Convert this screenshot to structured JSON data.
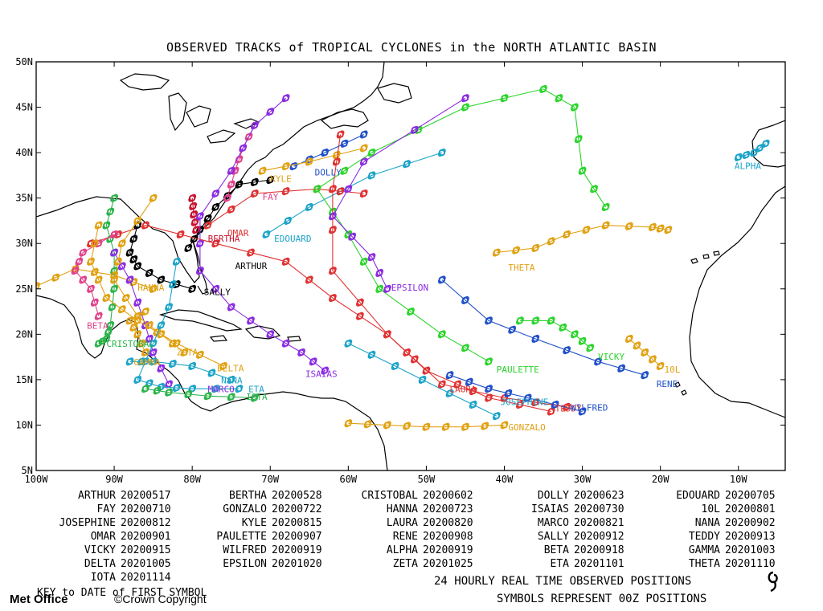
{
  "title": "OBSERVED TRACKS of TROPICAL CYCLONES in the NORTH ATLANTIC BASIN",
  "axes": {
    "lat_labels": [
      "50N",
      "45N",
      "40N",
      "35N",
      "30N",
      "25N",
      "20N",
      "15N",
      "10N",
      "5N"
    ],
    "lon_labels": [
      "100W",
      "90W",
      "80W",
      "70W",
      "60W",
      "50W",
      "40W",
      "30W",
      "20W",
      "10W"
    ],
    "lon_range": [
      -100,
      -4
    ],
    "lat_range": [
      5,
      50
    ]
  },
  "storms": [
    {
      "name": "ARTHUR",
      "date": "20200517",
      "color": "#000000",
      "label_at": [
        -74.5,
        27.2
      ],
      "track": [
        [
          -80.5,
          29.5
        ],
        [
          -79,
          31.5
        ],
        [
          -77,
          34
        ],
        [
          -74,
          36.5
        ],
        [
          -70,
          37
        ]
      ]
    },
    {
      "name": "BERTHA",
      "date": "20200528",
      "color": "#c8102e",
      "label_at": [
        -78,
        30.2
      ],
      "track": [
        [
          -79.5,
          31.5
        ],
        [
          -79.8,
          33.2
        ],
        [
          -80,
          35
        ]
      ]
    },
    {
      "name": "CRISTOBAL",
      "date": "20200602",
      "color": "#2ab34a",
      "label_at": [
        -91,
        18.6
      ],
      "track": [
        [
          -92,
          19
        ],
        [
          -91,
          19.5
        ],
        [
          -90.5,
          21
        ],
        [
          -90,
          25
        ],
        [
          -90,
          29
        ],
        [
          -91,
          32
        ],
        [
          -90,
          35
        ]
      ]
    },
    {
      "name": "DOLLY",
      "date": "20200623",
      "color": "#1f4fc8",
      "label_at": [
        -64.3,
        37.5
      ],
      "track": [
        [
          -67,
          38.5
        ],
        [
          -63,
          40
        ],
        [
          -58,
          42
        ]
      ]
    },
    {
      "name": "EDOUARD",
      "date": "20200705",
      "color": "#1aa3c8",
      "label_at": [
        -69.5,
        30.2
      ],
      "track": [
        [
          -70.5,
          31
        ],
        [
          -65,
          34
        ],
        [
          -57,
          37.5
        ],
        [
          -48,
          40
        ]
      ]
    },
    {
      "name": "FAY",
      "date": "20200710",
      "color": "#e0408a",
      "label_at": [
        -71,
        34.8
      ],
      "track": [
        [
          -75.5,
          35
        ],
        [
          -74.5,
          38
        ],
        [
          -73.5,
          40.5
        ],
        [
          -72,
          43
        ]
      ]
    },
    {
      "name": "GONZALO",
      "date": "20200722",
      "color": "#e0a010",
      "label_at": [
        -39.5,
        9.4
      ],
      "track": [
        [
          -60,
          10.2
        ],
        [
          -55,
          10
        ],
        [
          -50,
          9.8
        ],
        [
          -45,
          9.8
        ],
        [
          -40,
          10
        ]
      ]
    },
    {
      "name": "HANNA",
      "date": "20200723",
      "color": "#e0a010",
      "label_at": [
        -87,
        24.8
      ],
      "track": [
        [
          -85,
          25
        ],
        [
          -90,
          26.5
        ],
        [
          -95,
          27.2
        ],
        [
          -100,
          25.3
        ]
      ]
    },
    {
      "name": "ISAIAS",
      "date": "20200730",
      "color": "#8a2be2",
      "label_at": [
        -65.5,
        15.3
      ],
      "track": [
        [
          -63,
          16
        ],
        [
          -66,
          18
        ],
        [
          -70,
          20
        ],
        [
          -75,
          23
        ],
        [
          -79,
          27
        ],
        [
          -79,
          33
        ],
        [
          -75,
          38
        ],
        [
          -72,
          43
        ],
        [
          -68,
          46
        ]
      ]
    },
    {
      "name": "10L",
      "date": "20200801",
      "color": "#e0a010",
      "label_at": [
        -19.5,
        15.8
      ],
      "track": [
        [
          -24,
          19.5
        ],
        [
          -22,
          18
        ],
        [
          -20,
          16.5
        ]
      ]
    },
    {
      "name": "JOSEPHINE",
      "date": "20200812",
      "color": "#1aa3c8",
      "label_at": [
        -40.5,
        12.2
      ],
      "track": [
        [
          -41,
          11
        ],
        [
          -47,
          13.5
        ],
        [
          -54,
          16.5
        ],
        [
          -60,
          19
        ]
      ]
    },
    {
      "name": "KYLE",
      "date": "20200815",
      "color": "#e0a010",
      "label_at": [
        -70,
        36.8
      ],
      "track": [
        [
          -71,
          38
        ],
        [
          -65,
          39
        ],
        [
          -58,
          40.5
        ]
      ]
    },
    {
      "name": "LAURA",
      "date": "20200820",
      "color": "#e03030",
      "label_at": [
        -47,
        13.6
      ],
      "track": [
        [
          -34,
          11.5
        ],
        [
          -42,
          13
        ],
        [
          -50,
          16
        ],
        [
          -55,
          20
        ],
        [
          -62,
          24
        ],
        [
          -68,
          28
        ],
        [
          -77,
          30
        ],
        [
          -86,
          32
        ],
        [
          -93,
          30
        ]
      ]
    },
    {
      "name": "MARCO",
      "date": "20200821",
      "color": "#8a2be2",
      "label_at": [
        -78,
        13.6
      ],
      "track": [
        [
          -83,
          14.5
        ],
        [
          -85,
          18
        ],
        [
          -86,
          21
        ],
        [
          -88,
          26
        ],
        [
          -90,
          29
        ]
      ]
    },
    {
      "name": "NANA",
      "date": "20200902",
      "color": "#1aa3c8",
      "label_at": [
        -76.3,
        14.6
      ],
      "track": [
        [
          -75,
          15
        ],
        [
          -80,
          16.5
        ],
        [
          -85,
          17
        ],
        [
          -88,
          17
        ]
      ]
    },
    {
      "name": "OMAR",
      "date": "20200901",
      "color": "#e03030",
      "label_at": [
        -75.5,
        30.8
      ],
      "track": [
        [
          -78,
          32
        ],
        [
          -72,
          35.5
        ],
        [
          -64,
          36
        ],
        [
          -58,
          35.5
        ]
      ]
    },
    {
      "name": "PAULETTE",
      "date": "20200907",
      "color": "#2ad42a",
      "label_at": [
        -41,
        15.8
      ],
      "track": [
        [
          -42,
          17
        ],
        [
          -48,
          20
        ],
        [
          -56,
          25
        ],
        [
          -60,
          31
        ],
        [
          -64,
          36
        ],
        [
          -57,
          40
        ],
        [
          -45,
          45
        ],
        [
          -35,
          47
        ],
        [
          -31,
          45
        ],
        [
          -30,
          38
        ],
        [
          -27,
          34
        ]
      ]
    },
    {
      "name": "RENE",
      "date": "20200908",
      "color": "#1f4fc8",
      "label_at": [
        -20.5,
        14.2
      ],
      "track": [
        [
          -22,
          15.5
        ],
        [
          -28,
          17
        ],
        [
          -36,
          19.5
        ],
        [
          -42,
          21.5
        ],
        [
          -48,
          26
        ]
      ]
    },
    {
      "name": "SALLY",
      "date": "20200912",
      "color": "#000000",
      "label_at": [
        -78.5,
        24.3
      ],
      "track": [
        [
          -80,
          25
        ],
        [
          -84,
          26
        ],
        [
          -87,
          27.5
        ],
        [
          -88,
          29
        ],
        [
          -87,
          32
        ]
      ]
    },
    {
      "name": "TEDDY",
      "date": "20200913",
      "color": "#e03030",
      "label_at": [
        -33.5,
        11.5
      ],
      "track": [
        [
          -32,
          12
        ],
        [
          -40,
          13
        ],
        [
          -48,
          14.5
        ],
        [
          -55,
          20
        ],
        [
          -62,
          27
        ],
        [
          -62,
          36
        ],
        [
          -61,
          42
        ]
      ]
    },
    {
      "name": "VICKY",
      "date": "20200915",
      "color": "#2ad42a",
      "label_at": [
        -28,
        17.2
      ],
      "track": [
        [
          -38,
          21.5
        ],
        [
          -34,
          21.5
        ],
        [
          -31,
          20
        ],
        [
          -29,
          18.5
        ]
      ]
    },
    {
      "name": "WILFRED",
      "date": "20200919",
      "color": "#1f4fc8",
      "label_at": [
        -31.5,
        11.6
      ],
      "track": [
        [
          -30,
          11.5
        ],
        [
          -37,
          13
        ],
        [
          -42,
          14
        ],
        [
          -47,
          15.5
        ]
      ]
    },
    {
      "name": "ALPHA",
      "date": "20200919",
      "color": "#1aa3c8",
      "label_at": [
        -10.5,
        38.2
      ],
      "track": [
        [
          -10,
          39.5
        ],
        [
          -8,
          40
        ],
        [
          -6.5,
          41
        ]
      ]
    },
    {
      "name": "BETA",
      "date": "20200918",
      "color": "#e0408a",
      "label_at": [
        -93.5,
        20.6
      ],
      "track": [
        [
          -92,
          22
        ],
        [
          -93,
          25
        ],
        [
          -95,
          27
        ],
        [
          -94,
          29
        ],
        [
          -90,
          31
        ]
      ]
    },
    {
      "name": "GAMMA",
      "date": "20201003",
      "color": "#e0a010",
      "label_at": [
        -87.5,
        16.6
      ],
      "track": [
        [
          -86,
          18
        ],
        [
          -87,
          20
        ],
        [
          -88,
          21.5
        ],
        [
          -86,
          22.5
        ]
      ]
    },
    {
      "name": "DELTA",
      "date": "20201005",
      "color": "#e0a010",
      "label_at": [
        -76.8,
        15.9
      ],
      "track": [
        [
          -76,
          16.5
        ],
        [
          -82,
          19
        ],
        [
          -87,
          21.5
        ],
        [
          -91,
          24
        ],
        [
          -93,
          28
        ],
        [
          -92,
          32
        ]
      ]
    },
    {
      "name": "EPSILON",
      "date": "20201020",
      "color": "#8a2be2",
      "label_at": [
        -54.5,
        24.8
      ],
      "track": [
        [
          -55,
          25
        ],
        [
          -57,
          28.5
        ],
        [
          -62,
          33
        ],
        [
          -58,
          39
        ],
        [
          -45,
          46
        ]
      ]
    },
    {
      "name": "ZETA",
      "date": "20201025",
      "color": "#e0a010",
      "label_at": [
        -82,
        17.7
      ],
      "track": [
        [
          -81,
          18
        ],
        [
          -84,
          20
        ],
        [
          -87,
          22
        ],
        [
          -90,
          26
        ],
        [
          -89,
          30
        ],
        [
          -85,
          35
        ]
      ]
    },
    {
      "name": "ETA",
      "date": "20201101",
      "color": "#1aa3c8",
      "label_at": [
        -72.8,
        13.6
      ],
      "track": [
        [
          -74,
          14
        ],
        [
          -80,
          14
        ],
        [
          -84,
          14.2
        ],
        [
          -87,
          15
        ],
        [
          -85,
          19
        ],
        [
          -83,
          23
        ],
        [
          -82,
          28
        ]
      ]
    },
    {
      "name": "THETA",
      "date": "20201110",
      "color": "#e0a010",
      "label_at": [
        -39.5,
        27
      ],
      "track": [
        [
          -41,
          29
        ],
        [
          -36,
          29.5
        ],
        [
          -32,
          31
        ],
        [
          -27,
          32
        ],
        [
          -21,
          31.8
        ],
        [
          -19,
          31.5
        ]
      ]
    },
    {
      "name": "IOTA",
      "date": "20201114",
      "color": "#2ab34a",
      "label_at": [
        -73.1,
        12.8
      ],
      "track": [
        [
          -72,
          13
        ],
        [
          -78,
          13.2
        ],
        [
          -83,
          13.6
        ],
        [
          -86,
          14
        ]
      ]
    }
  ],
  "key_note": "KEY to DATE of FIRST SYMBOL",
  "footer_positions": "24 HOURLY REAL TIME OBSERVED POSITIONS",
  "footer_symbols": "SYMBOLS REPRESENT 00Z POSITIONS",
  "brand": "Met Office",
  "copyright": "©Crown Copyright",
  "legend_symbol_icon": "hurricane-symbol-icon"
}
